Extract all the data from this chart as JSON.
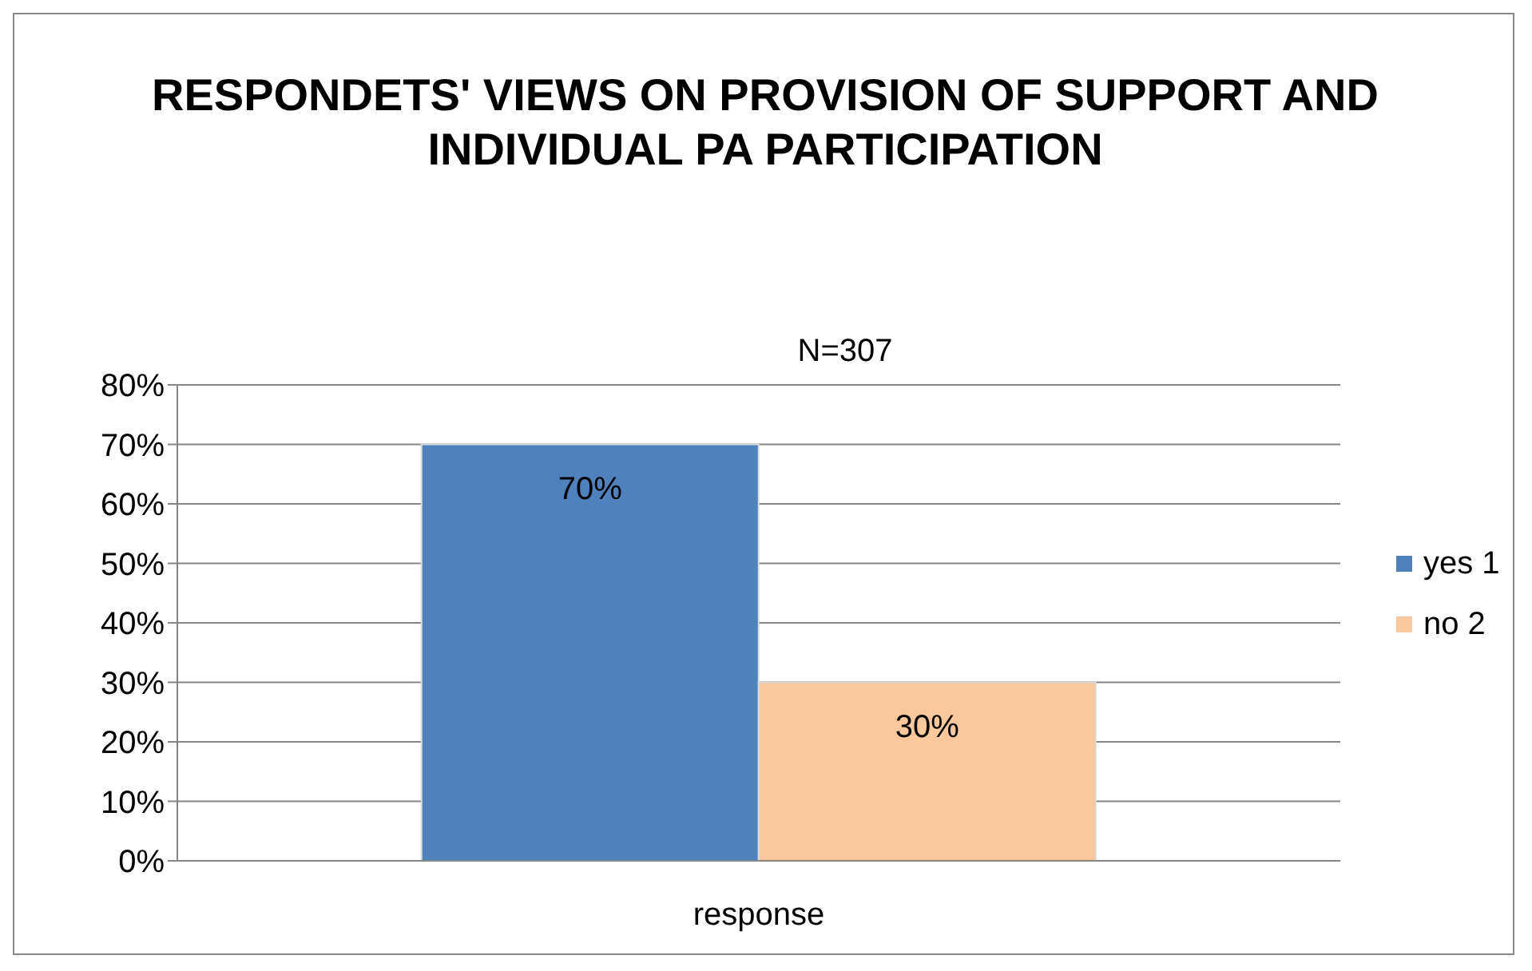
{
  "chart_data": {
    "type": "bar",
    "title": "RESPONDETS'  VIEWS ON PROVISION OF SUPPORT   AND INDIVIDUAL PA PARTICIPATION",
    "annotations": [
      "N=307"
    ],
    "categories": [
      "response"
    ],
    "series": [
      {
        "name": "yes 1",
        "color": "#4f81bd",
        "values": [
          70
        ],
        "value_labels": [
          "70%"
        ]
      },
      {
        "name": "no 2",
        "color": "#fbc79c",
        "values": [
          30
        ],
        "value_labels": [
          "30%"
        ]
      }
    ],
    "ylim": [
      0,
      80
    ],
    "yticks": [
      {
        "value": 0,
        "label": "0%"
      },
      {
        "value": 10,
        "label": "10%"
      },
      {
        "value": 20,
        "label": "20%"
      },
      {
        "value": 30,
        "label": "30%"
      },
      {
        "value": 40,
        "label": "40%"
      },
      {
        "value": 50,
        "label": "50%"
      },
      {
        "value": 60,
        "label": "60%"
      },
      {
        "value": 70,
        "label": "70%"
      },
      {
        "value": 80,
        "label": "80%"
      }
    ],
    "grid": "y",
    "legend": "right"
  }
}
